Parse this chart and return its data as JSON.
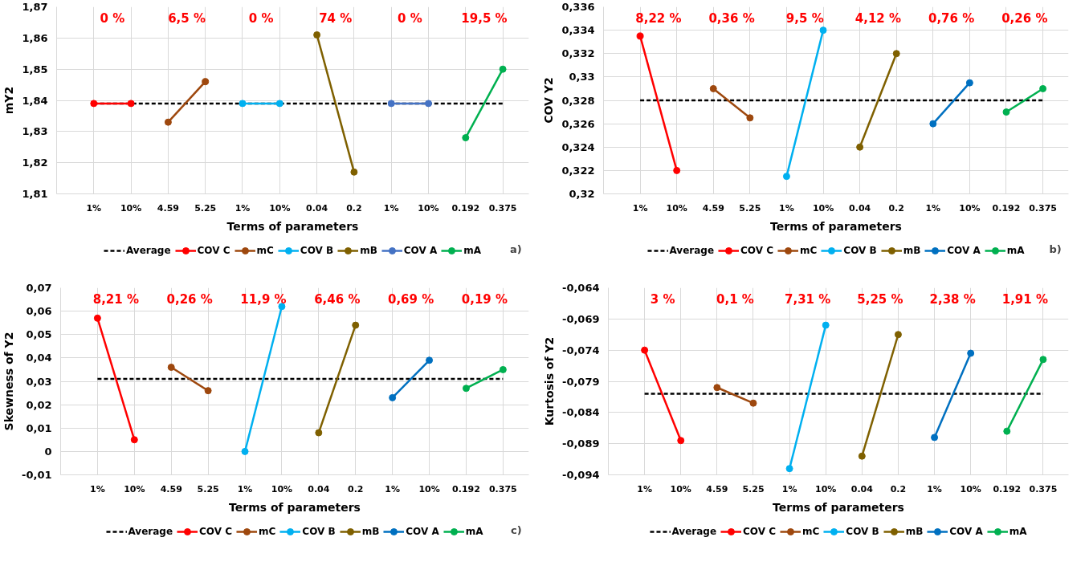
{
  "chart_data": [
    {
      "type": "line",
      "ylabel": "mY2",
      "xlabel": "Terms of parameters",
      "categories": [
        "1%",
        "10%",
        "4.59",
        "5.25",
        "1%",
        "10%",
        "0.04",
        "0.2",
        "1%",
        "10%",
        "0.192",
        "0.375"
      ],
      "ylim": [
        1.81,
        1.87
      ],
      "yticks": [
        {
          "value": 1.81,
          "label": "1,81"
        },
        {
          "value": 1.82,
          "label": "1,82"
        },
        {
          "value": 1.83,
          "label": "1,83"
        },
        {
          "value": 1.84,
          "label": "1,84"
        },
        {
          "value": 1.85,
          "label": "1,85"
        },
        {
          "value": 1.86,
          "label": "1,86"
        },
        {
          "value": 1.87,
          "label": "1,87"
        }
      ],
      "grid": true,
      "legend": "bottom",
      "marker": "circle",
      "annotations": [
        "0 %",
        "6,5 %",
        "0 %",
        "74 %",
        "0 %",
        "19,5 %",
        "a)"
      ],
      "series": [
        {
          "name": "Average",
          "color": "#000000",
          "line_style": "dashed",
          "marker": "none",
          "values": [
            1.839,
            1.839,
            1.839,
            1.839,
            1.839,
            1.839,
            1.839,
            1.839,
            1.839,
            1.839,
            1.839,
            1.839
          ]
        },
        {
          "name": "COV C",
          "color": "#ff0000",
          "values": [
            1.839,
            1.839,
            null,
            null,
            null,
            null,
            null,
            null,
            null,
            null,
            null,
            null
          ]
        },
        {
          "name": "mC",
          "color": "#9e480e",
          "values": [
            null,
            null,
            1.833,
            1.846,
            null,
            null,
            null,
            null,
            null,
            null,
            null,
            null
          ]
        },
        {
          "name": "COV B",
          "color": "#00b0f0",
          "values": [
            null,
            null,
            null,
            null,
            1.839,
            1.839,
            null,
            null,
            null,
            null,
            null,
            null
          ]
        },
        {
          "name": "mB",
          "color": "#7f6000",
          "values": [
            null,
            null,
            null,
            null,
            null,
            null,
            1.861,
            1.817,
            null,
            null,
            null,
            null
          ]
        },
        {
          "name": "COV A",
          "color": "#4472c4",
          "values": [
            null,
            null,
            null,
            null,
            null,
            null,
            null,
            null,
            1.839,
            1.839,
            null,
            null
          ]
        },
        {
          "name": "mA",
          "color": "#00b050",
          "values": [
            null,
            null,
            null,
            null,
            null,
            null,
            null,
            null,
            null,
            null,
            1.828,
            1.85
          ]
        }
      ]
    },
    {
      "type": "line",
      "ylabel": "COV Y2",
      "xlabel": "Terms of parameters",
      "categories": [
        "1%",
        "10%",
        "4.59",
        "5.25",
        "1%",
        "10%",
        "0.04",
        "0.2",
        "1%",
        "10%",
        "0.192",
        "0.375"
      ],
      "ylim": [
        0.32,
        0.336
      ],
      "yticks": [
        {
          "value": 0.32,
          "label": "0,32"
        },
        {
          "value": 0.322,
          "label": "0,322"
        },
        {
          "value": 0.324,
          "label": "0,324"
        },
        {
          "value": 0.326,
          "label": "0,326"
        },
        {
          "value": 0.328,
          "label": "0,328"
        },
        {
          "value": 0.33,
          "label": "0,33"
        },
        {
          "value": 0.332,
          "label": "0,332"
        },
        {
          "value": 0.334,
          "label": "0,334"
        },
        {
          "value": 0.336,
          "label": "0,336"
        }
      ],
      "grid": true,
      "legend": "bottom",
      "marker": "circle",
      "annotations": [
        "8,22 %",
        "0,36 %",
        "9,5 %",
        "4,12 %",
        "0,76 %",
        "0,26 %",
        "b)"
      ],
      "series": [
        {
          "name": "Average",
          "color": "#000000",
          "line_style": "dashed",
          "marker": "none",
          "values": [
            0.328,
            0.328,
            0.328,
            0.328,
            0.328,
            0.328,
            0.328,
            0.328,
            0.328,
            0.328,
            0.328,
            0.328
          ]
        },
        {
          "name": "COV C",
          "color": "#ff0000",
          "values": [
            0.3335,
            0.322,
            null,
            null,
            null,
            null,
            null,
            null,
            null,
            null,
            null,
            null
          ]
        },
        {
          "name": "mC",
          "color": "#9e480e",
          "values": [
            null,
            null,
            0.329,
            0.3265,
            null,
            null,
            null,
            null,
            null,
            null,
            null,
            null
          ]
        },
        {
          "name": "COV B",
          "color": "#00b0f0",
          "values": [
            null,
            null,
            null,
            null,
            0.3215,
            0.334,
            null,
            null,
            null,
            null,
            null,
            null
          ]
        },
        {
          "name": "mB",
          "color": "#7f6000",
          "values": [
            null,
            null,
            null,
            null,
            null,
            null,
            0.324,
            0.332,
            null,
            null,
            null,
            null
          ]
        },
        {
          "name": "COV A",
          "color": "#0070c0",
          "values": [
            null,
            null,
            null,
            null,
            null,
            null,
            null,
            null,
            0.326,
            0.3295,
            null,
            null
          ]
        },
        {
          "name": "mA",
          "color": "#00b050",
          "values": [
            null,
            null,
            null,
            null,
            null,
            null,
            null,
            null,
            null,
            null,
            0.327,
            0.329
          ]
        }
      ]
    },
    {
      "type": "line",
      "ylabel": "Skewness of Y2",
      "xlabel": "Terms of parameters",
      "categories": [
        "1%",
        "10%",
        "4.59",
        "5.25",
        "1%",
        "10%",
        "0.04",
        "0.2",
        "1%",
        "10%",
        "0.192",
        "0.375"
      ],
      "ylim": [
        -0.01,
        0.07
      ],
      "yticks": [
        {
          "value": -0.01,
          "label": "-0,01"
        },
        {
          "value": 0,
          "label": "0"
        },
        {
          "value": 0.01,
          "label": "0,01"
        },
        {
          "value": 0.02,
          "label": "0,02"
        },
        {
          "value": 0.03,
          "label": "0,03"
        },
        {
          "value": 0.04,
          "label": "0,04"
        },
        {
          "value": 0.05,
          "label": "0,05"
        },
        {
          "value": 0.06,
          "label": "0,06"
        },
        {
          "value": 0.07,
          "label": "0,07"
        }
      ],
      "grid": true,
      "legend": "bottom",
      "marker": "circle",
      "annotations": [
        "8,21 %",
        "0,26 %",
        "11,9 %",
        "6,46 %",
        "0,69 %",
        "0,19 %",
        "c)"
      ],
      "series": [
        {
          "name": "Average",
          "color": "#000000",
          "line_style": "dashed",
          "marker": "none",
          "values": [
            0.031,
            0.031,
            0.031,
            0.031,
            0.031,
            0.031,
            0.031,
            0.031,
            0.031,
            0.031,
            0.031,
            0.031
          ]
        },
        {
          "name": "COV C",
          "color": "#ff0000",
          "values": [
            0.057,
            0.005,
            null,
            null,
            null,
            null,
            null,
            null,
            null,
            null,
            null,
            null
          ]
        },
        {
          "name": "mC",
          "color": "#9e480e",
          "values": [
            null,
            null,
            0.036,
            0.026,
            null,
            null,
            null,
            null,
            null,
            null,
            null,
            null
          ]
        },
        {
          "name": "COV B",
          "color": "#00b0f0",
          "values": [
            null,
            null,
            null,
            null,
            0,
            0.062,
            null,
            null,
            null,
            null,
            null,
            null
          ]
        },
        {
          "name": "mB",
          "color": "#7f6000",
          "values": [
            null,
            null,
            null,
            null,
            null,
            null,
            0.008,
            0.054,
            null,
            null,
            null,
            null
          ]
        },
        {
          "name": "COV A",
          "color": "#0070c0",
          "values": [
            null,
            null,
            null,
            null,
            null,
            null,
            null,
            null,
            0.023,
            0.039,
            null,
            null
          ]
        },
        {
          "name": "mA",
          "color": "#00b050",
          "values": [
            null,
            null,
            null,
            null,
            null,
            null,
            null,
            null,
            null,
            null,
            0.027,
            0.035
          ]
        }
      ]
    },
    {
      "type": "line",
      "ylabel": "Kurtosis of Y2",
      "xlabel": "Terms of parameters",
      "categories": [
        "1%",
        "10%",
        "4.59",
        "5.25",
        "1%",
        "10%",
        "0.04",
        "0.2",
        "1%",
        "10%",
        "0.192",
        "0.375"
      ],
      "ylim": [
        -0.094,
        -0.064
      ],
      "yticks": [
        {
          "value": -0.094,
          "label": "-0,094"
        },
        {
          "value": -0.089,
          "label": "-0,089"
        },
        {
          "value": -0.084,
          "label": "-0,084"
        },
        {
          "value": -0.079,
          "label": "-0,079"
        },
        {
          "value": -0.074,
          "label": "-0,074"
        },
        {
          "value": -0.069,
          "label": "-0,069"
        },
        {
          "value": -0.064,
          "label": "-0,064"
        }
      ],
      "grid": true,
      "legend": "bottom",
      "marker": "circle",
      "annotations": [
        "3 %",
        "0,1 %",
        "7,31 %",
        "5,25 %",
        "2,38 %",
        "1,91 %"
      ],
      "series": [
        {
          "name": "Average",
          "color": "#000000",
          "line_style": "dashed",
          "marker": "none",
          "values": [
            -0.081,
            -0.081,
            -0.081,
            -0.081,
            -0.081,
            -0.081,
            -0.081,
            -0.081,
            -0.081,
            -0.081,
            -0.081,
            -0.081
          ]
        },
        {
          "name": "COV C",
          "color": "#ff0000",
          "values": [
            -0.074,
            -0.0885,
            null,
            null,
            null,
            null,
            null,
            null,
            null,
            null,
            null,
            null
          ]
        },
        {
          "name": "mC",
          "color": "#9e480e",
          "values": [
            null,
            null,
            -0.08,
            -0.0825,
            null,
            null,
            null,
            null,
            null,
            null,
            null,
            null
          ]
        },
        {
          "name": "COV B",
          "color": "#00b0f0",
          "values": [
            null,
            null,
            null,
            null,
            -0.093,
            -0.07,
            null,
            null,
            null,
            null,
            null,
            null
          ]
        },
        {
          "name": "mB",
          "color": "#7f6000",
          "values": [
            null,
            null,
            null,
            null,
            null,
            null,
            -0.091,
            -0.0715,
            null,
            null,
            null,
            null
          ]
        },
        {
          "name": "COV A",
          "color": "#0070c0",
          "values": [
            null,
            null,
            null,
            null,
            null,
            null,
            null,
            null,
            -0.088,
            -0.0745,
            null,
            null
          ]
        },
        {
          "name": "mA",
          "color": "#00b050",
          "values": [
            null,
            null,
            null,
            null,
            null,
            null,
            null,
            null,
            null,
            null,
            -0.087,
            -0.0755
          ]
        }
      ]
    }
  ]
}
